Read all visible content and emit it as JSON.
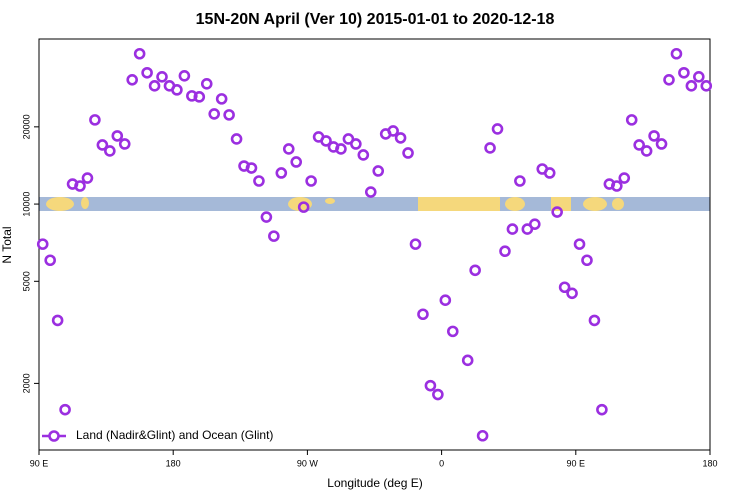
{
  "chart_data": {
    "type": "scatter",
    "title": "15N-20N April (Ver 10)   2015-01-01 to 2020-12-18",
    "x_label": "Longitude (deg E)",
    "y_label": "N Total",
    "log_y": true,
    "xlim": [
      90,
      540
    ],
    "ylim": [
      1100,
      44000
    ],
    "xticks": [
      {
        "value": 90,
        "label": "90 E"
      },
      180,
      {
        "value": 270,
        "label": "90 W"
      },
      {
        "value": 360,
        "label": "0"
      },
      {
        "value": 450,
        "label": "90 E"
      },
      {
        "value": 540,
        "label": "180"
      }
    ],
    "yticks": [
      2000,
      5000,
      10000,
      20000
    ],
    "legend": "bottom-left",
    "series": [
      {
        "name": "Land (Nadir&Glint) and Ocean (Glint)",
        "color": "#9b2fe0",
        "x": [
          92.5,
          97.5,
          102.5,
          107.5,
          112.5,
          117.5,
          122.5,
          127.5,
          132.5,
          137.5,
          142.5,
          147.5,
          152.5,
          157.5,
          162.5,
          167.5,
          172.5,
          177.5,
          182.5,
          187.5,
          192.5,
          197.5,
          202.5,
          207.5,
          212.5,
          217.5,
          222.5,
          227.5,
          232.5,
          237.5,
          242.5,
          247.5,
          252.5,
          257.5,
          262.5,
          267.5,
          272.5,
          277.5,
          282.5,
          287.5,
          292.5,
          297.5,
          302.5,
          307.5,
          312.5,
          317.5,
          322.5,
          327.5,
          332.5,
          337.5,
          342.5,
          347.5,
          352.5,
          357.5,
          362.5,
          367.5,
          377.5,
          382.5,
          387.5,
          392.5,
          397.5,
          402.5,
          407.5,
          412.5,
          417.5,
          422.5,
          427.5,
          432.5,
          437.5,
          442.5,
          447.5,
          452.5,
          457.5,
          462.5,
          467.5,
          472.5,
          477.5,
          482.5,
          487.5,
          492.5,
          497.5,
          502.5,
          507.5,
          512.5,
          517.5,
          522.5,
          527.5,
          532.5,
          537.5
        ],
        "values": [
          6980,
          6040,
          3520,
          1580,
          11970,
          11760,
          12630,
          21290,
          17000,
          16110,
          18440,
          17150,
          30510,
          38540,
          32490,
          28900,
          31340,
          28900,
          27880,
          31620,
          26410,
          26180,
          29430,
          22460,
          25710,
          22270,
          17940,
          14070,
          13820,
          12300,
          8900,
          7500,
          13220,
          16400,
          14590,
          9730,
          12300,
          18270,
          17630,
          16700,
          16400,
          17940,
          17150,
          15540,
          11140,
          13460,
          18770,
          19280,
          18110,
          15820,
          6980,
          3720,
          1960,
          1810,
          4220,
          3190,
          2460,
          5520,
          1250,
          16550,
          19630,
          6550,
          7990,
          12300,
          7990,
          8350,
          13700,
          13220,
          9310,
          4740,
          4490,
          6980,
          6040,
          3520,
          1580,
          11970,
          11760,
          12630,
          21290,
          17000,
          16110,
          18440,
          17150,
          30510,
          38540,
          32490,
          28900,
          31340,
          28900
        ]
      }
    ]
  }
}
